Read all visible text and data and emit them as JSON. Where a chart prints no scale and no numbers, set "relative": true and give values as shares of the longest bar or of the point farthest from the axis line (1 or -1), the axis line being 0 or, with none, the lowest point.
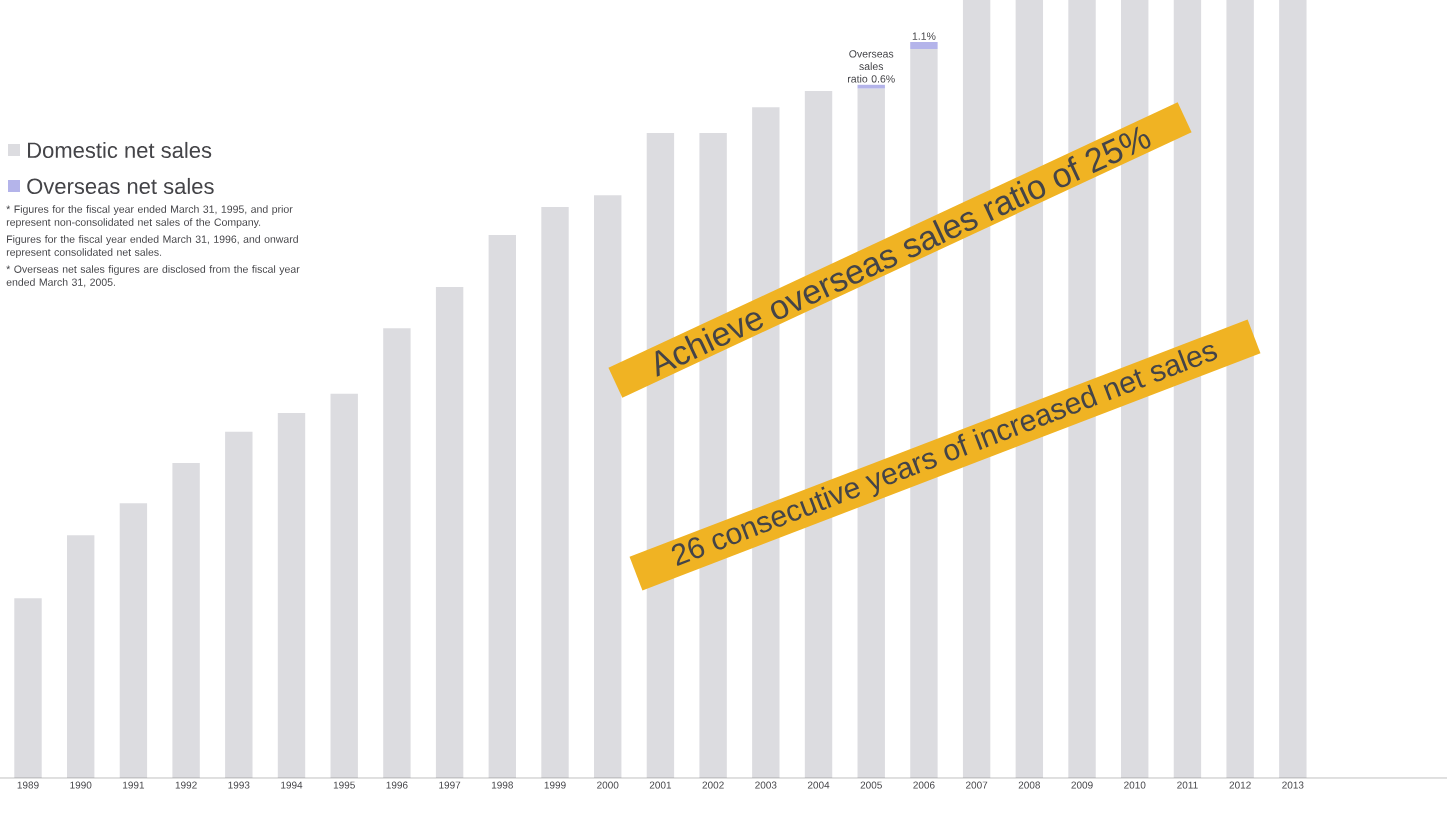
{
  "chart_data": {
    "type": "bar",
    "relative": true,
    "stacked": true,
    "legend": "top left",
    "categories": [
      "1989",
      "1990",
      "1991",
      "1992",
      "1993",
      "1994",
      "1995",
      "1996",
      "1997",
      "1998",
      "1999",
      "2000",
      "2001",
      "2002",
      "2003",
      "2004",
      "2005",
      "2006",
      "2007",
      "2008",
      "2009",
      "2010",
      "2011",
      "2012",
      "2013"
    ],
    "series": [
      {
        "name": "Domestic net sales",
        "color": "#dcdce0",
        "values": [
          0.231,
          0.312,
          0.353,
          0.405,
          0.445,
          0.469,
          0.494,
          0.578,
          0.631,
          0.698,
          0.734,
          0.749,
          0.829,
          0.829,
          0.862,
          0.883,
          0.886,
          0.937,
          1.0,
          1.0,
          1.0,
          1.0,
          1.0,
          1.0,
          1.0
        ]
      },
      {
        "name": "Overseas net sales",
        "color": "#b4b4ea",
        "values": [
          null,
          null,
          null,
          null,
          null,
          null,
          null,
          null,
          null,
          null,
          null,
          null,
          null,
          null,
          null,
          null,
          0.005,
          0.009,
          null,
          null,
          null,
          null,
          null,
          null,
          null
        ]
      }
    ],
    "annotations": [
      "Achieve overseas sales ratio of 25%",
      "26 consecutive years of increased net sales",
      "* Figures for the fiscal year ended March 31, 1995, and prior represent non-consolidated net sales of the Company.",
      "Figures for the fiscal year ended March 31, 1996, and onward represent consolidated net sales.",
      "* Overseas net sales figures are disclosed from the fiscal year ended March 31, 2005.",
      {
        "text": "Overseas sales ratio 0.6%",
        "x": "2005",
        "y": 0.891
      },
      {
        "text": "1.1%",
        "x": "2006",
        "y": 0.946
      }
    ]
  }
}
